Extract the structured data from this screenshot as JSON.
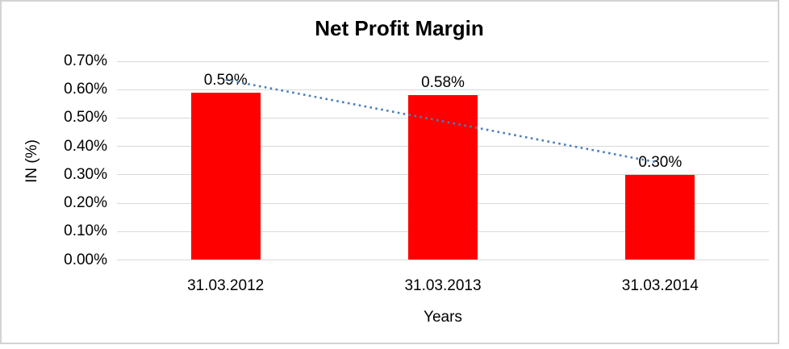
{
  "chart_data": {
    "type": "bar",
    "title": "Net Profit Margin",
    "xlabel": "Years",
    "ylabel": "IN (%)",
    "categories": [
      "31.03.2012",
      "31.03.2013",
      "31.03.2014"
    ],
    "values": [
      0.59,
      0.58,
      0.3
    ],
    "data_labels": [
      "0.59%",
      "0.58%",
      "0.30%"
    ],
    "yticks": [
      "0.70%",
      "0.60%",
      "0.50%",
      "0.40%",
      "0.30%",
      "0.20%",
      "0.10%",
      "0.00%"
    ],
    "ytick_values": [
      0.7,
      0.6,
      0.5,
      0.4,
      0.3,
      0.2,
      0.1,
      0.0
    ],
    "ylim": [
      0,
      0.7
    ],
    "grid": true,
    "legend": "none",
    "bar_color": "#ff0000",
    "gridline_color": "#d9d9d9",
    "frame_border_color": "#d3d3d3",
    "text_color": "#000000",
    "trendline": {
      "type": "linear",
      "style": "dotted",
      "color": "#4a7ebb",
      "start_value": 0.635,
      "end_value": 0.345
    }
  }
}
